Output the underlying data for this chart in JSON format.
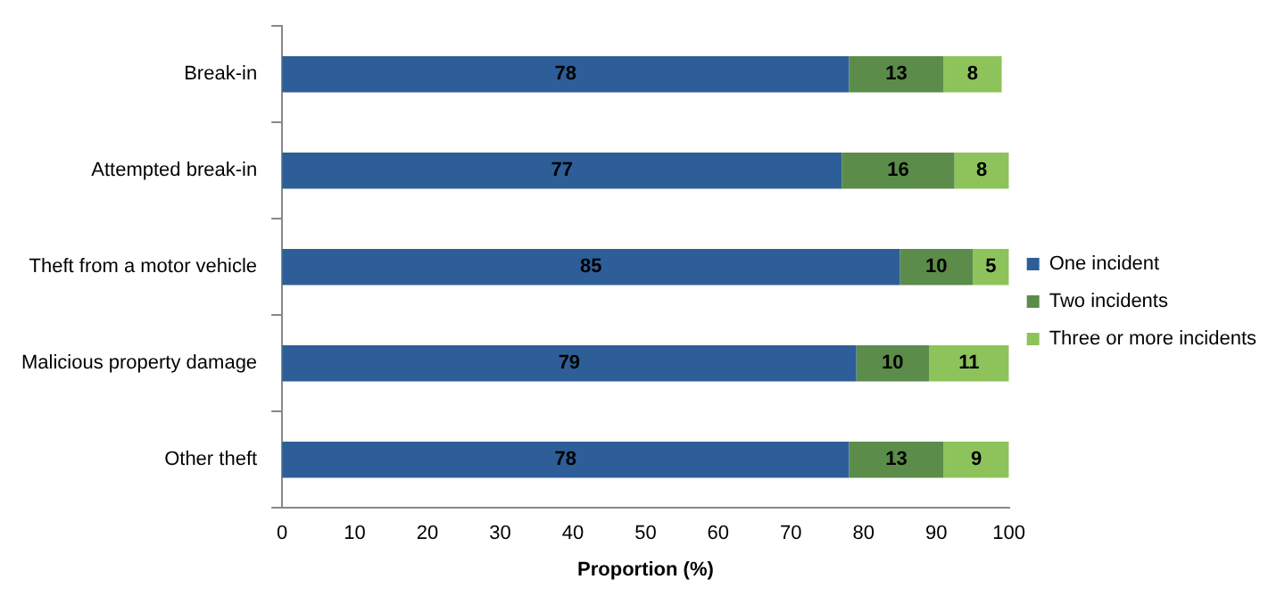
{
  "chart_data": {
    "type": "bar",
    "orientation": "horizontal",
    "stacked": true,
    "xlabel": "Proportion (%)",
    "categories": [
      "Break-in",
      "Attempted break-in",
      "Theft from a motor vehicle",
      "Malicious property damage",
      "Other theft"
    ],
    "series": [
      {
        "name": "One incident",
        "color": "#2e5e97",
        "values": [
          78,
          77,
          85,
          79,
          78
        ]
      },
      {
        "name": "Two incidents",
        "color": "#5b8c4a",
        "values": [
          13,
          15.5,
          10,
          10,
          13
        ],
        "value_labels": [
          "13",
          "16",
          "10",
          "10",
          "13"
        ]
      },
      {
        "name": "Three or more incidents",
        "color": "#8dc35a",
        "values": [
          8,
          7.5,
          5,
          11,
          9
        ],
        "value_labels": [
          "8",
          "8",
          "5",
          "11",
          "9"
        ]
      }
    ],
    "xlim": [
      0,
      100
    ],
    "xticks": [
      0,
      10,
      20,
      30,
      40,
      50,
      60,
      70,
      80,
      90,
      100
    ],
    "grid": false,
    "legend": "right",
    "data_labels": true
  }
}
